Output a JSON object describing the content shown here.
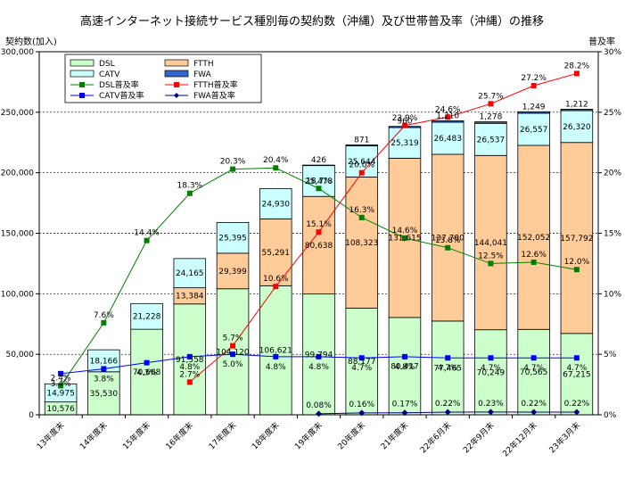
{
  "chart_data": {
    "type": "bar",
    "title": "高速インターネット接続サービス種別毎の契約数（沖縄）及び世帯普及率（沖縄）の推移",
    "ylabel_left": "契約数(加入)",
    "ylabel_right": "普及率",
    "ylim_left": [
      0,
      300000
    ],
    "ylim_right": [
      0,
      30
    ],
    "yticks_left": [
      "0",
      "50,000",
      "100,000",
      "150,000",
      "200,000",
      "250,000",
      "300,000"
    ],
    "yticks_right": [
      "0%",
      "5%",
      "10%",
      "15%",
      "20%",
      "25%",
      "30%"
    ],
    "categories": [
      "13年度末",
      "14年度末",
      "15年度末",
      "16年度末",
      "17年度末",
      "18年度末",
      "19年度末",
      "20年度末",
      "21年度末",
      "22年6月末",
      "22年9月末",
      "22年12月末",
      "23年3月末"
    ],
    "grid": "horizontal dotted",
    "legend": "top-left",
    "bar_series": [
      {
        "name": "DSL",
        "color": "#ccffcc",
        "values": [
          10576,
          35530,
          70668,
          91558,
          104120,
          106621,
          99794,
          88177,
          80417,
          77465,
          70249,
          70565,
          67215
        ],
        "labels": [
          "10,576",
          "35,530",
          "70,668",
          "91,558",
          "104,120",
          "106,621",
          "99,794",
          "88,177",
          "80,417",
          "77,465",
          "70,249",
          "70,565",
          "67,215"
        ]
      },
      {
        "name": "FTTH",
        "color": "#ffcc99",
        "values": [
          null,
          null,
          null,
          13384,
          29399,
          55291,
          80638,
          108323,
          131615,
          137780,
          144041,
          152052,
          157792
        ],
        "labels": [
          "",
          "",
          "",
          "13,384",
          "29,399",
          "55,291",
          "80,638",
          "108,323",
          "131,615",
          "137,780",
          "144,041",
          "152,052",
          "157,792"
        ]
      },
      {
        "name": "CATV",
        "color": "#ccffff",
        "values": [
          14975,
          18166,
          21228,
          24165,
          25395,
          24930,
          25478,
          25644,
          25319,
          26483,
          26537,
          26557,
          26320
        ],
        "labels": [
          "14,975",
          "18,166",
          "21,228",
          "24,165",
          "25,395",
          "24,930",
          "25,478",
          "25,644",
          "25,319",
          "26,483",
          "26,537",
          "26,557",
          "26,320"
        ]
      },
      {
        "name": "FWA",
        "color": "#3366cc",
        "values": [
          null,
          null,
          null,
          null,
          null,
          null,
          426,
          871,
          960,
          1210,
          1278,
          1249,
          1212
        ],
        "labels": [
          "",
          "",
          "",
          "",
          "",
          "",
          "426",
          "871",
          "960",
          "1,210",
          "1,278",
          "1,249",
          "1,212"
        ]
      }
    ],
    "line_series": [
      {
        "name": "DSL普及率",
        "color": "#008000",
        "marker": "square",
        "values": [
          2.4,
          7.6,
          14.4,
          18.3,
          20.3,
          20.4,
          18.7,
          16.3,
          14.6,
          13.8,
          12.5,
          12.6,
          12.0
        ],
        "labels": [
          "2.4%",
          "7.6%",
          "14.4%",
          "18.3%",
          "20.3%",
          "20.4%",
          "18.7%",
          "16.3%",
          "14.6%",
          "13.8%",
          "12.5%",
          "12.6%",
          "12.0%"
        ]
      },
      {
        "name": "FTTH普及率",
        "color": "#ff0000",
        "marker": "square",
        "values": [
          null,
          null,
          null,
          2.7,
          5.7,
          10.6,
          15.1,
          20.0,
          23.9,
          24.6,
          25.7,
          27.2,
          28.2
        ],
        "labels": [
          "",
          "",
          "",
          "2.7%",
          "5.7%",
          "10.6%",
          "15.1%",
          "20.0%",
          "23.9%",
          "24.6%",
          "25.7%",
          "27.2%",
          "28.2%"
        ]
      },
      {
        "name": "CATV普及率",
        "color": "#0000ff",
        "marker": "square",
        "values": [
          3.4,
          3.8,
          4.3,
          4.8,
          5.0,
          4.8,
          4.8,
          4.7,
          4.8,
          4.7,
          4.7,
          4.7,
          4.7
        ],
        "labels": [
          "3.4%",
          "3.8%",
          "4.3%",
          "4.8%",
          "5.0%",
          "4.8%",
          "4.8%",
          "4.7%",
          "4.8%",
          "4.7%",
          "4.7%",
          "4.7%",
          "4.7%"
        ]
      },
      {
        "name": "FWA普及率",
        "color": "#000080",
        "marker": "diamond",
        "values": [
          null,
          null,
          null,
          null,
          null,
          null,
          0.08,
          0.16,
          0.17,
          0.22,
          0.23,
          0.22,
          0.22
        ],
        "labels": [
          "",
          "",
          "",
          "",
          "",
          "",
          "0.08%",
          "0.16%",
          "0.17%",
          "0.22%",
          "0.23%",
          "0.22%",
          "0.22%"
        ]
      }
    ]
  }
}
